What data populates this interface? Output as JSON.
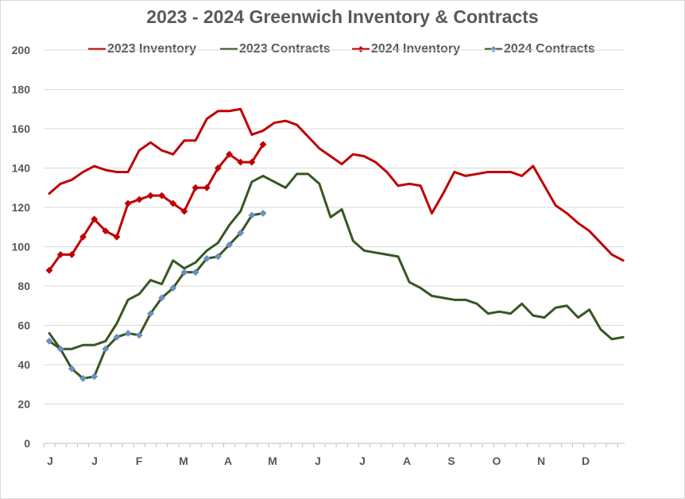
{
  "chart_data": {
    "type": "line",
    "title": "2023 -  2024 Greenwich Inventory & Contracts",
    "xlabel": "",
    "ylabel": "",
    "ylim": [
      0,
      200
    ],
    "yticks": [
      0,
      20,
      40,
      60,
      80,
      100,
      120,
      140,
      160,
      180,
      200
    ],
    "x_tick_labels": [
      "J",
      "J",
      "F",
      "M",
      "A",
      "M",
      "J",
      "J",
      "A",
      "S",
      "O",
      "N",
      "D"
    ],
    "grid": true,
    "legend_position": "top",
    "series": [
      {
        "name": "2023 Inventory",
        "color": "#c00000",
        "marker": "none",
        "values": [
          127,
          132,
          134,
          138,
          141,
          139,
          138,
          138,
          149,
          153,
          149,
          147,
          154,
          154,
          165,
          169,
          169,
          170,
          157,
          159,
          163,
          164,
          162,
          156,
          150,
          146,
          142,
          147,
          146,
          143,
          138,
          131,
          132,
          131,
          117,
          127,
          138,
          136,
          137,
          138,
          138,
          138,
          136,
          141,
          131,
          121,
          117,
          112,
          108,
          102,
          96,
          93
        ]
      },
      {
        "name": "2023 Contracts",
        "color": "#375623",
        "marker": "none",
        "values": [
          56,
          48,
          48,
          50,
          50,
          52,
          61,
          73,
          76,
          83,
          81,
          93,
          89,
          92,
          98,
          102,
          111,
          118,
          133,
          136,
          133,
          130,
          137,
          137,
          132,
          115,
          119,
          103,
          98,
          97,
          96,
          95,
          82,
          79,
          75,
          74,
          73,
          73,
          71,
          66,
          67,
          66,
          71,
          65,
          64,
          69,
          70,
          64,
          68,
          58,
          53,
          54
        ]
      },
      {
        "name": "2024 Inventory",
        "color": "#c00000",
        "marker": "diamond",
        "values": [
          88,
          96,
          96,
          105,
          114,
          108,
          105,
          122,
          124,
          126,
          126,
          122,
          118,
          130,
          130,
          140,
          147,
          143,
          143,
          152
        ]
      },
      {
        "name": "2024 Contracts",
        "color": "#375623",
        "marker": "diamond",
        "marker_color": "#6a8fc0",
        "values": [
          52,
          48,
          38,
          33,
          34,
          48,
          54,
          56,
          55,
          66,
          74,
          79,
          87,
          87,
          94,
          95,
          101,
          107,
          116,
          117
        ]
      }
    ]
  }
}
